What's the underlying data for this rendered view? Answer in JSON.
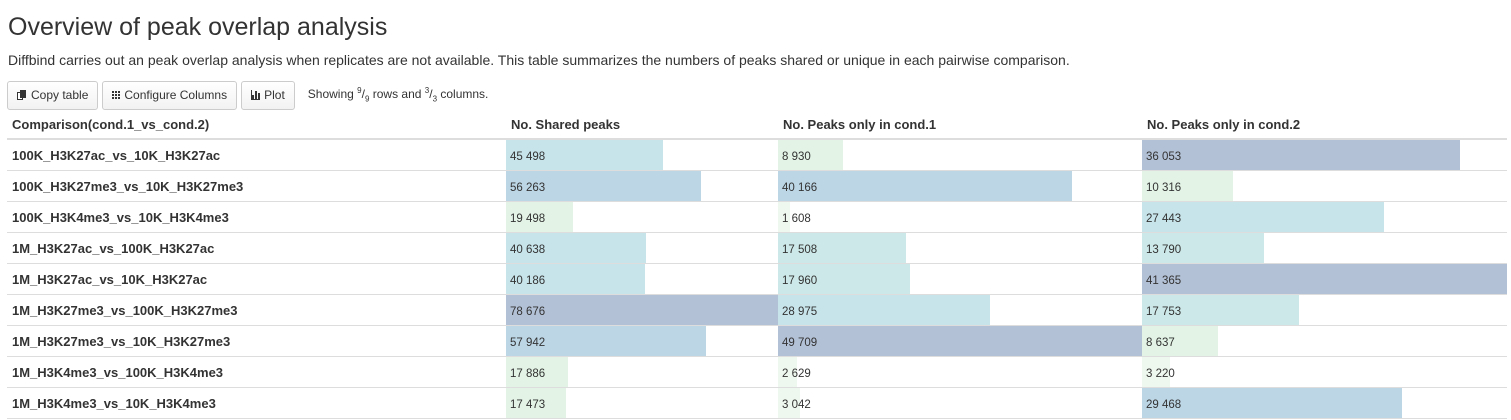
{
  "title": "Overview of peak overlap analysis",
  "description": "Diffbind carries out an peak overlap analysis when replicates are not available. This table summarizes the numbers of peaks shared or unique in each pairwise comparison.",
  "toolbar": {
    "copy_label": "Copy table",
    "configure_label": "Configure Columns",
    "plot_label": "Plot",
    "status": {
      "prefix": "Showing ",
      "rows_num": "9",
      "rows_den": "9",
      "mid": " rows and ",
      "cols_num": "3",
      "cols_den": "3",
      "suffix": " columns."
    }
  },
  "table": {
    "columns": [
      "Comparison(cond.1_vs_cond.2)",
      "No. Shared peaks",
      "No. Peaks only in cond.1",
      "No. Peaks only in cond.2"
    ],
    "rows": [
      {
        "comparison": "100K_H3K27ac_vs_10K_H3K27ac",
        "shared": "45 498",
        "only1": "8 930",
        "only2": "36 053",
        "v": [
          45498,
          8930,
          36053
        ]
      },
      {
        "comparison": "100K_H3K27me3_vs_10K_H3K27me3",
        "shared": "56 263",
        "only1": "40 166",
        "only2": "10 316",
        "v": [
          56263,
          40166,
          10316
        ]
      },
      {
        "comparison": "100K_H3K4me3_vs_10K_H3K4me3",
        "shared": "19 498",
        "only1": "1 608",
        "only2": "27 443",
        "v": [
          19498,
          1608,
          27443
        ]
      },
      {
        "comparison": "1M_H3K27ac_vs_100K_H3K27ac",
        "shared": "40 638",
        "only1": "17 508",
        "only2": "13 790",
        "v": [
          40638,
          17508,
          13790
        ]
      },
      {
        "comparison": "1M_H3K27ac_vs_10K_H3K27ac",
        "shared": "40 186",
        "only1": "17 960",
        "only2": "41 365",
        "v": [
          40186,
          17960,
          41365
        ]
      },
      {
        "comparison": "1M_H3K27me3_vs_100K_H3K27me3",
        "shared": "78 676",
        "only1": "28 975",
        "only2": "17 753",
        "v": [
          78676,
          28975,
          17753
        ]
      },
      {
        "comparison": "1M_H3K27me3_vs_10K_H3K27me3",
        "shared": "57 942",
        "only1": "49 709",
        "only2": "8 637",
        "v": [
          57942,
          49709,
          8637
        ]
      },
      {
        "comparison": "1M_H3K4me3_vs_100K_H3K4me3",
        "shared": "17 886",
        "only1": "2 629",
        "only2": "3 220",
        "v": [
          17886,
          2629,
          3220
        ]
      },
      {
        "comparison": "1M_H3K4me3_vs_10K_H3K4me3",
        "shared": "17 473",
        "only1": "3 042",
        "only2": "29 468",
        "v": [
          17473,
          3042,
          29468
        ]
      }
    ],
    "column_max": [
      78676,
      49709,
      41365
    ]
  },
  "colors": {
    "bar_scale": [
      "#eff8ee",
      "#e3f4e6",
      "#cde8e8",
      "#c7e4ea",
      "#bcd6e6",
      "#b3c1d6"
    ],
    "border": "#dddddd",
    "text": "#333333"
  },
  "icons": [
    "copy-icon",
    "columns-icon",
    "bar-chart-icon"
  ]
}
